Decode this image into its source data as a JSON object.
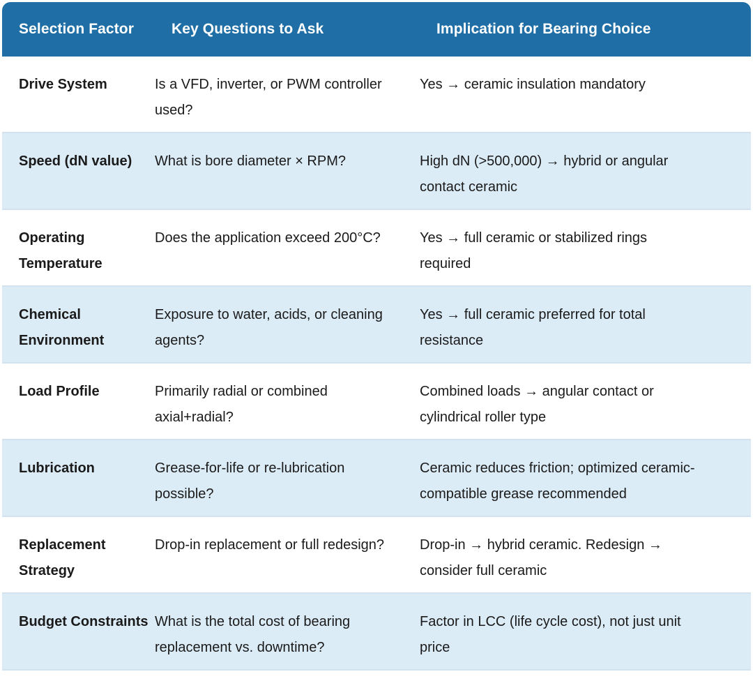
{
  "table": {
    "headers": [
      "Selection Factor",
      "Key Questions to Ask",
      "Implication for Bearing Choice"
    ],
    "rows": [
      {
        "factor": "Drive System",
        "question": "Is a VFD, inverter, or PWM controller used?",
        "implication": "Yes → ceramic insulation mandatory"
      },
      {
        "factor": "Speed (dN value)",
        "question": "What is bore diameter × RPM?",
        "implication": "High dN (>500,000) → hybrid or angular contact ceramic"
      },
      {
        "factor": "Operating Temperature",
        "question": "Does the application exceed 200°C?",
        "implication": "Yes → full ceramic or stabilized rings required"
      },
      {
        "factor": "Chemical Environment",
        "question": "Exposure to water, acids, or cleaning agents?",
        "implication": "Yes → full ceramic preferred for total resistance"
      },
      {
        "factor": "Load Profile",
        "question": "Primarily radial or combined axial+radial?",
        "implication": "Combined loads → angular contact or cylindrical roller type"
      },
      {
        "factor": "Lubrication",
        "question": "Grease-for-life or re-lubrication possible?",
        "implication": "Ceramic reduces friction; optimized ceramic-compatible grease recommended"
      },
      {
        "factor": "Replacement Strategy",
        "question": "Drop-in replacement or full redesign?",
        "implication": "Drop-in → hybrid ceramic. Redesign → consider full ceramic"
      },
      {
        "factor": "Budget Constraints",
        "question": "What is the total cost of bearing replacement vs. downtime?",
        "implication": "Factor in LCC (life cycle cost), not just unit price"
      }
    ]
  },
  "colors": {
    "header_bg": "#1f6fa6",
    "row_alt_bg": "#dcecf7",
    "row_bg": "#ffffff"
  }
}
